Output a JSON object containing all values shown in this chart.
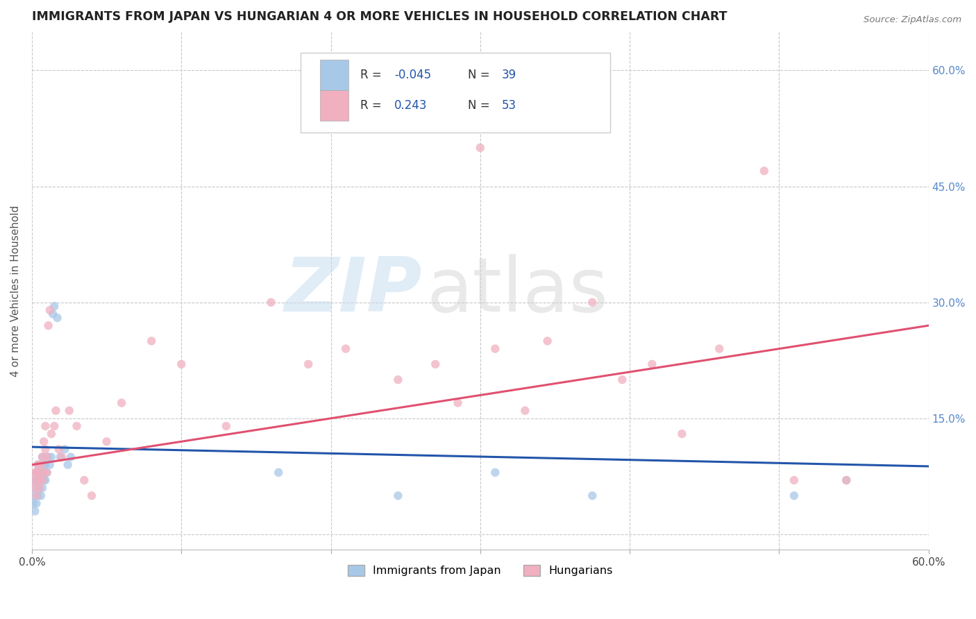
{
  "title": "IMMIGRANTS FROM JAPAN VS HUNGARIAN 4 OR MORE VEHICLES IN HOUSEHOLD CORRELATION CHART",
  "source": "Source: ZipAtlas.com",
  "ylabel": "4 or more Vehicles in Household",
  "xlim": [
    0.0,
    0.6
  ],
  "ylim": [
    -0.02,
    0.65
  ],
  "xticks": [
    0.0,
    0.1,
    0.2,
    0.3,
    0.4,
    0.5,
    0.6
  ],
  "xtick_labels": [
    "0.0%",
    "",
    "",
    "",
    "",
    "",
    "60.0%"
  ],
  "yticks": [
    0.0,
    0.15,
    0.3,
    0.45,
    0.6
  ],
  "ytick_labels": [
    "",
    "15.0%",
    "30.0%",
    "45.0%",
    "60.0%"
  ],
  "background_color": "#ffffff",
  "grid_color": "#c8c8c8",
  "japan_color": "#a8c8e8",
  "hungarian_color": "#f0b0c0",
  "japan_r": -0.045,
  "japan_n": 39,
  "hungarian_r": 0.243,
  "hungarian_n": 53,
  "japan_line_x": [
    0.0,
    0.6
  ],
  "japan_line_y": [
    0.113,
    0.088
  ],
  "hungarian_line_x": [
    0.0,
    0.6
  ],
  "hungarian_line_y": [
    0.09,
    0.27
  ],
  "japan_scatter_x": [
    0.001,
    0.001,
    0.002,
    0.002,
    0.002,
    0.003,
    0.003,
    0.003,
    0.004,
    0.004,
    0.004,
    0.005,
    0.005,
    0.006,
    0.006,
    0.007,
    0.007,
    0.007,
    0.008,
    0.008,
    0.009,
    0.009,
    0.01,
    0.011,
    0.012,
    0.013,
    0.014,
    0.015,
    0.017,
    0.019,
    0.022,
    0.024,
    0.026,
    0.165,
    0.245,
    0.31,
    0.375,
    0.51,
    0.545
  ],
  "japan_scatter_y": [
    0.04,
    0.05,
    0.03,
    0.06,
    0.07,
    0.04,
    0.07,
    0.08,
    0.05,
    0.07,
    0.09,
    0.06,
    0.08,
    0.05,
    0.07,
    0.06,
    0.08,
    0.1,
    0.07,
    0.09,
    0.07,
    0.09,
    0.08,
    0.1,
    0.09,
    0.1,
    0.285,
    0.295,
    0.28,
    0.1,
    0.11,
    0.09,
    0.1,
    0.08,
    0.05,
    0.08,
    0.05,
    0.05,
    0.07
  ],
  "hungarian_scatter_x": [
    0.001,
    0.002,
    0.002,
    0.003,
    0.003,
    0.004,
    0.004,
    0.005,
    0.005,
    0.006,
    0.006,
    0.007,
    0.007,
    0.008,
    0.008,
    0.009,
    0.009,
    0.01,
    0.01,
    0.011,
    0.012,
    0.013,
    0.015,
    0.016,
    0.018,
    0.02,
    0.025,
    0.03,
    0.035,
    0.04,
    0.05,
    0.06,
    0.08,
    0.1,
    0.13,
    0.16,
    0.185,
    0.21,
    0.245,
    0.27,
    0.285,
    0.3,
    0.31,
    0.33,
    0.345,
    0.375,
    0.395,
    0.415,
    0.435,
    0.46,
    0.49,
    0.51,
    0.545
  ],
  "hungarian_scatter_y": [
    0.07,
    0.06,
    0.08,
    0.05,
    0.08,
    0.07,
    0.09,
    0.06,
    0.08,
    0.07,
    0.09,
    0.07,
    0.1,
    0.12,
    0.08,
    0.11,
    0.14,
    0.08,
    0.1,
    0.27,
    0.29,
    0.13,
    0.14,
    0.16,
    0.11,
    0.1,
    0.16,
    0.14,
    0.07,
    0.05,
    0.12,
    0.17,
    0.25,
    0.22,
    0.14,
    0.3,
    0.22,
    0.24,
    0.2,
    0.22,
    0.17,
    0.5,
    0.24,
    0.16,
    0.25,
    0.3,
    0.2,
    0.22,
    0.13,
    0.24,
    0.47,
    0.07,
    0.07
  ],
  "legend_japan_label": "Immigrants from Japan",
  "legend_hungarian_label": "Hungarians"
}
